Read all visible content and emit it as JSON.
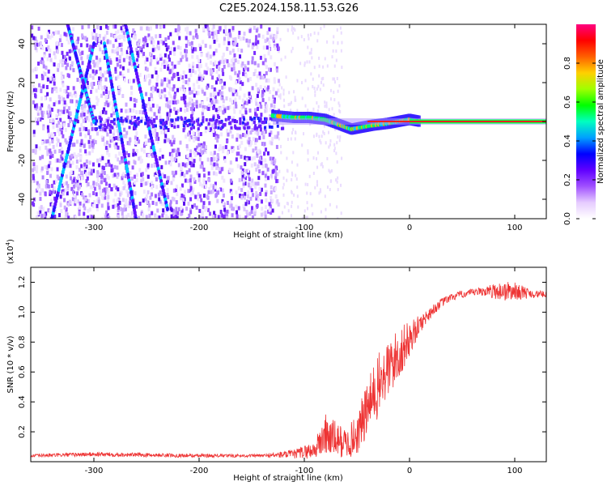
{
  "title": "C2E5.2024.158.11.53.G26",
  "chart_data": [
    {
      "type": "heatmap",
      "xlabel": "Height of straight line (km)",
      "ylabel": "Frequency (Hz)",
      "xlim": [
        -360,
        130
      ],
      "ylim": [
        -50,
        50
      ],
      "xticks": [
        -300,
        -200,
        -100,
        0,
        100
      ],
      "yticks": [
        -40,
        -20,
        0,
        20,
        40
      ],
      "grid": false,
      "colorbar": {
        "label": "Normalized spectral amplitude",
        "range": [
          0.0,
          1.0
        ],
        "ticks": [
          0.0,
          0.2,
          0.4,
          0.6,
          0.8
        ],
        "colormap": [
          "#ffffff",
          "#e6ccff",
          "#a050ff",
          "#6000ff",
          "#0000ff",
          "#00a0ff",
          "#00ffc0",
          "#00ff00",
          "#a0ff00",
          "#ffd000",
          "#ff6000",
          "#ff0000",
          "#ff0080"
        ]
      },
      "features": {
        "carrier_line": {
          "x_range": [
            -130,
            130
          ],
          "frequency_hz": 0
        },
        "residual_track_points": [
          {
            "x": -130,
            "f": 3
          },
          {
            "x": -110,
            "f": 2
          },
          {
            "x": -95,
            "f": 2
          },
          {
            "x": -80,
            "f": 1
          },
          {
            "x": -65,
            "f": -2
          },
          {
            "x": -55,
            "f": -4
          },
          {
            "x": -45,
            "f": -3
          },
          {
            "x": -35,
            "f": -2
          },
          {
            "x": -20,
            "f": -1
          },
          {
            "x": -10,
            "f": 0
          },
          {
            "x": 0,
            "f": 1
          },
          {
            "x": 10,
            "f": 0
          }
        ],
        "diagonal_streaks": [
          {
            "from": [
              -340,
              -50
            ],
            "to": [
              -300,
              40
            ]
          },
          {
            "from": [
              -290,
              40
            ],
            "to": [
              -260,
              -50
            ]
          },
          {
            "from": [
              -270,
              50
            ],
            "to": [
              -230,
              -45
            ]
          },
          {
            "from": [
              -325,
              50
            ],
            "to": [
              -300,
              0
            ]
          }
        ]
      }
    },
    {
      "type": "line",
      "xlabel": "Height of straight line (km)",
      "ylabel": "SNR (10 * v/v)",
      "y_multiplier": "(x10",
      "y_multiplier_exp": "4",
      "y_multiplier_close": ")",
      "xlim": [
        -360,
        130
      ],
      "ylim": [
        0,
        1.3
      ],
      "xticks": [
        -300,
        -200,
        -100,
        0,
        100
      ],
      "yticks": [
        0.2,
        0.4,
        0.6,
        0.8,
        1.0,
        1.2
      ],
      "ytick_labels": [
        "0.2",
        "0.4",
        "0.6",
        "0.8",
        "1.0",
        "1.2"
      ],
      "color": "#ee3333",
      "grid": false,
      "series": [
        {
          "envelope_x": [
            -360,
            -300,
            -200,
            -140,
            -110,
            -90,
            -80,
            -70,
            -60,
            -50,
            -40,
            -30,
            -20,
            -10,
            0,
            10,
            20,
            30,
            40,
            50,
            60,
            70,
            80,
            90,
            100,
            110,
            120,
            130
          ],
          "envelope_y": [
            0.04,
            0.05,
            0.04,
            0.04,
            0.05,
            0.08,
            0.18,
            0.15,
            0.12,
            0.18,
            0.35,
            0.5,
            0.62,
            0.72,
            0.82,
            0.92,
            1.0,
            1.06,
            1.1,
            1.12,
            1.13,
            1.14,
            1.14,
            1.14,
            1.14,
            1.13,
            1.12,
            1.12
          ],
          "noise_amp_y": [
            0.01,
            0.015,
            0.012,
            0.01,
            0.03,
            0.06,
            0.15,
            0.12,
            0.1,
            0.14,
            0.2,
            0.22,
            0.2,
            0.18,
            0.12,
            0.06,
            0.04,
            0.03,
            0.025,
            0.025,
            0.025,
            0.03,
            0.05,
            0.07,
            0.06,
            0.04,
            0.025,
            0.02
          ]
        }
      ]
    }
  ]
}
